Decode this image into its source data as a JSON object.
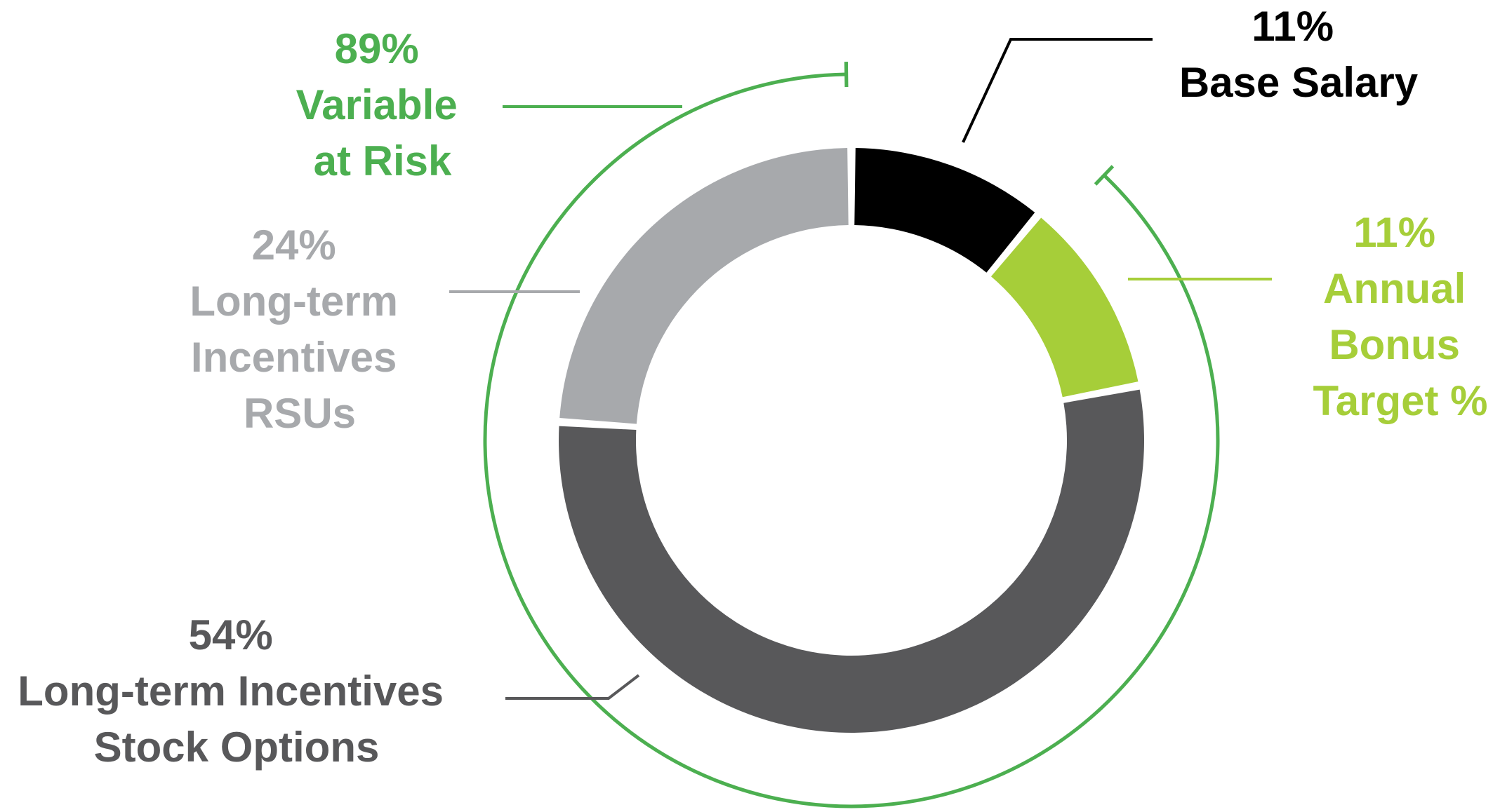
{
  "chart_data": {
    "type": "pie",
    "variant": "donut",
    "slices": [
      {
        "key": "base",
        "value": 11,
        "color": "#000000",
        "pct_label": "11%",
        "label_lines": [
          "Base Salary"
        ]
      },
      {
        "key": "bonus",
        "value": 11,
        "color": "#a6ce39",
        "pct_label": "11%",
        "label_lines": [
          "Annual",
          "Bonus",
          "Target %"
        ]
      },
      {
        "key": "options",
        "value": 54,
        "color": "#58585a",
        "pct_label": "54%",
        "label_lines": [
          "Long-term Incentives",
          "Stock Options"
        ]
      },
      {
        "key": "rsus",
        "value": 24,
        "color": "#a7a9ac",
        "pct_label": "24%",
        "label_lines": [
          "Long-term",
          "Incentives",
          "RSUs"
        ]
      }
    ],
    "bracket": {
      "value": 89,
      "color": "#4caf50",
      "pct_label": "89%",
      "label_lines": [
        "Variable",
        "at Risk"
      ]
    }
  }
}
